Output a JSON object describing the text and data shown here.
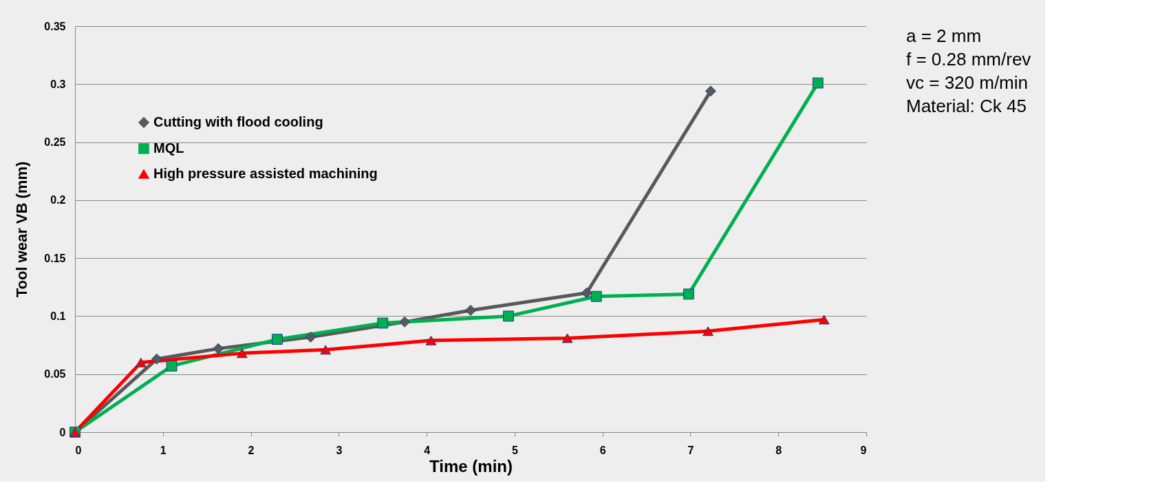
{
  "chart_data": {
    "type": "line",
    "xlabel": "Time  (min)",
    "ylabel": "Tool wear VB (mm)",
    "xlim": [
      0,
      9
    ],
    "xticks": [
      0,
      1,
      2,
      3,
      4,
      5,
      6,
      7,
      8,
      9
    ],
    "ylim": [
      0,
      0.35
    ],
    "yticks": [
      0,
      0.05,
      0.1,
      0.15,
      0.2,
      0.25,
      0.3,
      0.35
    ],
    "grid": "y",
    "legend": "top left",
    "line_style": "solid",
    "series": [
      {
        "name": "Cutting with flood cooling",
        "color": "#595959",
        "marker": "diamond",
        "x": [
          0,
          0.93,
          1.63,
          2.68,
          3.75,
          4.5,
          5.82,
          7.23
        ],
        "values": [
          0,
          0.063,
          0.072,
          0.082,
          0.095,
          0.105,
          0.12,
          0.294
        ]
      },
      {
        "name": "MQL",
        "color": "#00b050",
        "marker": "square",
        "x": [
          0,
          1.1,
          2.3,
          3.5,
          4.93,
          5.93,
          6.98,
          8.45
        ],
        "values": [
          0,
          0.057,
          0.08,
          0.094,
          0.1,
          0.117,
          0.119,
          0.301
        ]
      },
      {
        "name": "High pressure assisted machining",
        "color": "#ff0000",
        "marker": "triangle",
        "x": [
          0,
          0.75,
          1.9,
          2.85,
          4.05,
          5.6,
          7.2,
          8.52
        ],
        "values": [
          0,
          0.06,
          0.068,
          0.071,
          0.079,
          0.081,
          0.087,
          0.097
        ]
      }
    ],
    "annotations": [
      "a = 2 mm",
      "f = 0.28 mm/rev",
      "vc = 320 m/min",
      "Material: Ck 45"
    ]
  }
}
